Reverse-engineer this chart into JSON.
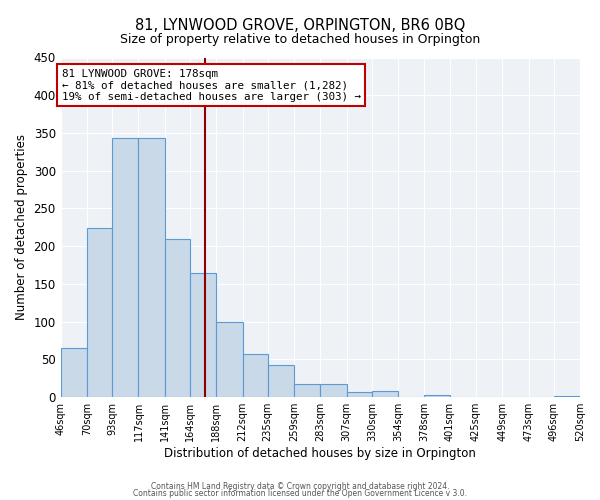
{
  "title": "81, LYNWOOD GROVE, ORPINGTON, BR6 0BQ",
  "subtitle": "Size of property relative to detached houses in Orpington",
  "xlabel": "Distribution of detached houses by size in Orpington",
  "ylabel": "Number of detached properties",
  "bar_edges": [
    46,
    70,
    93,
    117,
    141,
    164,
    188,
    212,
    235,
    259,
    283,
    307,
    330,
    354,
    378,
    401,
    425,
    449,
    473,
    496,
    520
  ],
  "bar_heights": [
    65,
    224,
    343,
    344,
    210,
    165,
    100,
    57,
    43,
    18,
    17,
    7,
    8,
    0,
    3,
    0,
    0,
    0,
    0,
    2
  ],
  "bar_color": "#c9d9e8",
  "bar_edge_color": "#5b9bd5",
  "property_size": 178,
  "vline_color": "#8b0000",
  "annotation_line1": "81 LYNWOOD GROVE: 178sqm",
  "annotation_line2": "← 81% of detached houses are smaller (1,282)",
  "annotation_line3": "19% of semi-detached houses are larger (303) →",
  "annotation_box_color": "#c00000",
  "ylim": [
    0,
    450
  ],
  "footer1": "Contains HM Land Registry data © Crown copyright and database right 2024.",
  "footer2": "Contains public sector information licensed under the Open Government Licence v 3.0.",
  "tick_labels": [
    "46sqm",
    "70sqm",
    "93sqm",
    "117sqm",
    "141sqm",
    "164sqm",
    "188sqm",
    "212sqm",
    "235sqm",
    "259sqm",
    "283sqm",
    "307sqm",
    "330sqm",
    "354sqm",
    "378sqm",
    "401sqm",
    "425sqm",
    "449sqm",
    "473sqm",
    "496sqm",
    "520sqm"
  ],
  "bg_color": "#eef2f7"
}
